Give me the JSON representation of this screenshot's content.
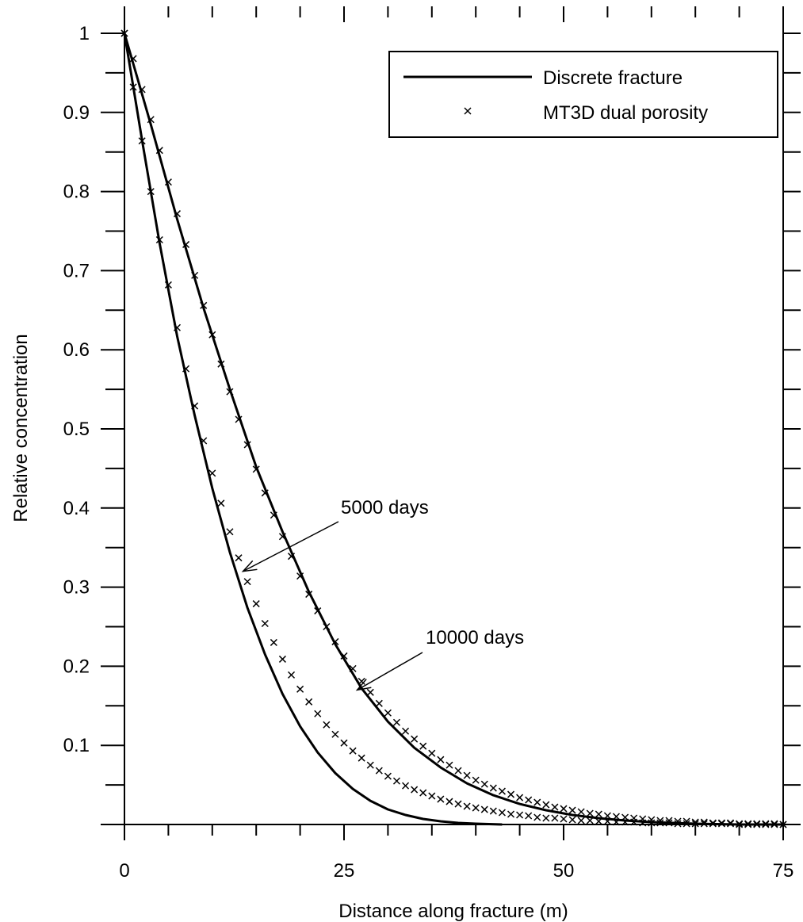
{
  "chart_data": {
    "type": "line",
    "xlabel": "Distance along fracture (m)",
    "ylabel": "Relative concentration",
    "xlim": [
      0,
      75
    ],
    "ylim": [
      0,
      1
    ],
    "x_ticks": [
      "0",
      "25",
      "50",
      "75"
    ],
    "y_ticks": [
      "0.1",
      "0.2",
      "0.3",
      "0.4",
      "0.5",
      "0.6",
      "0.7",
      "0.8",
      "0.9",
      "1"
    ],
    "grid": false,
    "legend_position": "top-right",
    "legend": [
      {
        "label": "Discrete fracture",
        "style": "line"
      },
      {
        "label": "MT3D dual porosity",
        "style": "x-marker"
      }
    ],
    "annotations": [
      {
        "text": "5000 days",
        "points_to": {
          "x": 13.5,
          "y": 0.32
        }
      },
      {
        "text": "10000 days",
        "points_to": {
          "x": 26.5,
          "y": 0.17
        }
      }
    ],
    "series": [
      {
        "style": "line",
        "x": [
          0,
          2,
          4,
          6,
          8,
          10,
          12,
          14,
          16,
          18,
          20,
          22,
          24,
          26,
          28,
          30,
          32,
          34,
          36,
          38,
          40,
          43
        ],
        "values": [
          1.0,
          0.865,
          0.735,
          0.617,
          0.517,
          0.425,
          0.344,
          0.274,
          0.215,
          0.165,
          0.124,
          0.091,
          0.065,
          0.045,
          0.03,
          0.019,
          0.012,
          0.007,
          0.004,
          0.002,
          0.001,
          0.0
        ]
      },
      {
        "style": "line",
        "x": [
          0,
          3,
          6,
          9,
          12,
          15,
          18,
          21,
          24,
          27,
          30,
          33,
          36,
          39,
          42,
          45,
          48,
          51,
          54,
          57,
          60,
          65,
          70,
          75
        ],
        "values": [
          1.0,
          0.885,
          0.765,
          0.653,
          0.55,
          0.452,
          0.37,
          0.294,
          0.228,
          0.172,
          0.13,
          0.097,
          0.072,
          0.052,
          0.037,
          0.026,
          0.018,
          0.012,
          0.008,
          0.005,
          0.003,
          0.001,
          0.0,
          0.0
        ]
      },
      {
        "style": "markers",
        "x": [
          0,
          1,
          2,
          3,
          4,
          5,
          6,
          7,
          8,
          9,
          10,
          11,
          12,
          13,
          14,
          15,
          16,
          17,
          18,
          19,
          20,
          21,
          22,
          23,
          24,
          25,
          26,
          27,
          28,
          29,
          30,
          31,
          32,
          33,
          34,
          35,
          36,
          37,
          38,
          39,
          40,
          41,
          42,
          43,
          44,
          45,
          46,
          47,
          48,
          49,
          50,
          51,
          52,
          53,
          54,
          55,
          56,
          57,
          58,
          59,
          60,
          61,
          62,
          63,
          64,
          65,
          66,
          67,
          68,
          69,
          70,
          71,
          72,
          73,
          74,
          75
        ],
        "values": [
          1.0,
          0.932,
          0.864,
          0.8,
          0.739,
          0.682,
          0.628,
          0.576,
          0.529,
          0.485,
          0.444,
          0.406,
          0.37,
          0.337,
          0.307,
          0.279,
          0.254,
          0.23,
          0.209,
          0.189,
          0.171,
          0.155,
          0.14,
          0.126,
          0.114,
          0.103,
          0.093,
          0.084,
          0.075,
          0.068,
          0.061,
          0.055,
          0.049,
          0.044,
          0.04,
          0.036,
          0.032,
          0.029,
          0.026,
          0.023,
          0.021,
          0.019,
          0.017,
          0.015,
          0.013,
          0.012,
          0.011,
          0.009,
          0.008,
          0.008,
          0.007,
          0.006,
          0.005,
          0.005,
          0.004,
          0.004,
          0.003,
          0.003,
          0.003,
          0.002,
          0.002,
          0.002,
          0.002,
          0.001,
          0.001,
          0.001,
          0.001,
          0.001,
          0.001,
          0.001,
          0.0,
          0.0,
          0.0,
          0.0,
          0.0,
          0.0
        ]
      },
      {
        "style": "markers",
        "x": [
          0,
          1,
          2,
          3,
          4,
          5,
          6,
          7,
          8,
          9,
          10,
          11,
          12,
          13,
          14,
          15,
          16,
          17,
          18,
          19,
          20,
          21,
          22,
          23,
          24,
          25,
          26,
          27,
          28,
          29,
          30,
          31,
          32,
          33,
          34,
          35,
          36,
          37,
          38,
          39,
          40,
          41,
          42,
          43,
          44,
          45,
          46,
          47,
          48,
          49,
          50,
          51,
          52,
          53,
          54,
          55,
          56,
          57,
          58,
          59,
          60,
          61,
          62,
          63,
          64,
          65,
          66,
          67,
          68,
          69,
          70,
          71,
          72,
          73,
          74,
          75
        ],
        "values": [
          1.0,
          0.968,
          0.929,
          0.891,
          0.852,
          0.812,
          0.772,
          0.733,
          0.694,
          0.656,
          0.619,
          0.582,
          0.547,
          0.512,
          0.48,
          0.449,
          0.419,
          0.391,
          0.364,
          0.339,
          0.314,
          0.291,
          0.27,
          0.25,
          0.231,
          0.213,
          0.197,
          0.181,
          0.167,
          0.153,
          0.141,
          0.129,
          0.118,
          0.108,
          0.099,
          0.09,
          0.082,
          0.075,
          0.068,
          0.062,
          0.056,
          0.051,
          0.046,
          0.042,
          0.038,
          0.034,
          0.031,
          0.028,
          0.025,
          0.022,
          0.02,
          0.018,
          0.016,
          0.014,
          0.013,
          0.011,
          0.01,
          0.009,
          0.008,
          0.007,
          0.006,
          0.005,
          0.005,
          0.004,
          0.004,
          0.003,
          0.003,
          0.002,
          0.002,
          0.002,
          0.001,
          0.001,
          0.001,
          0.001,
          0.001,
          0.0
        ]
      }
    ]
  }
}
